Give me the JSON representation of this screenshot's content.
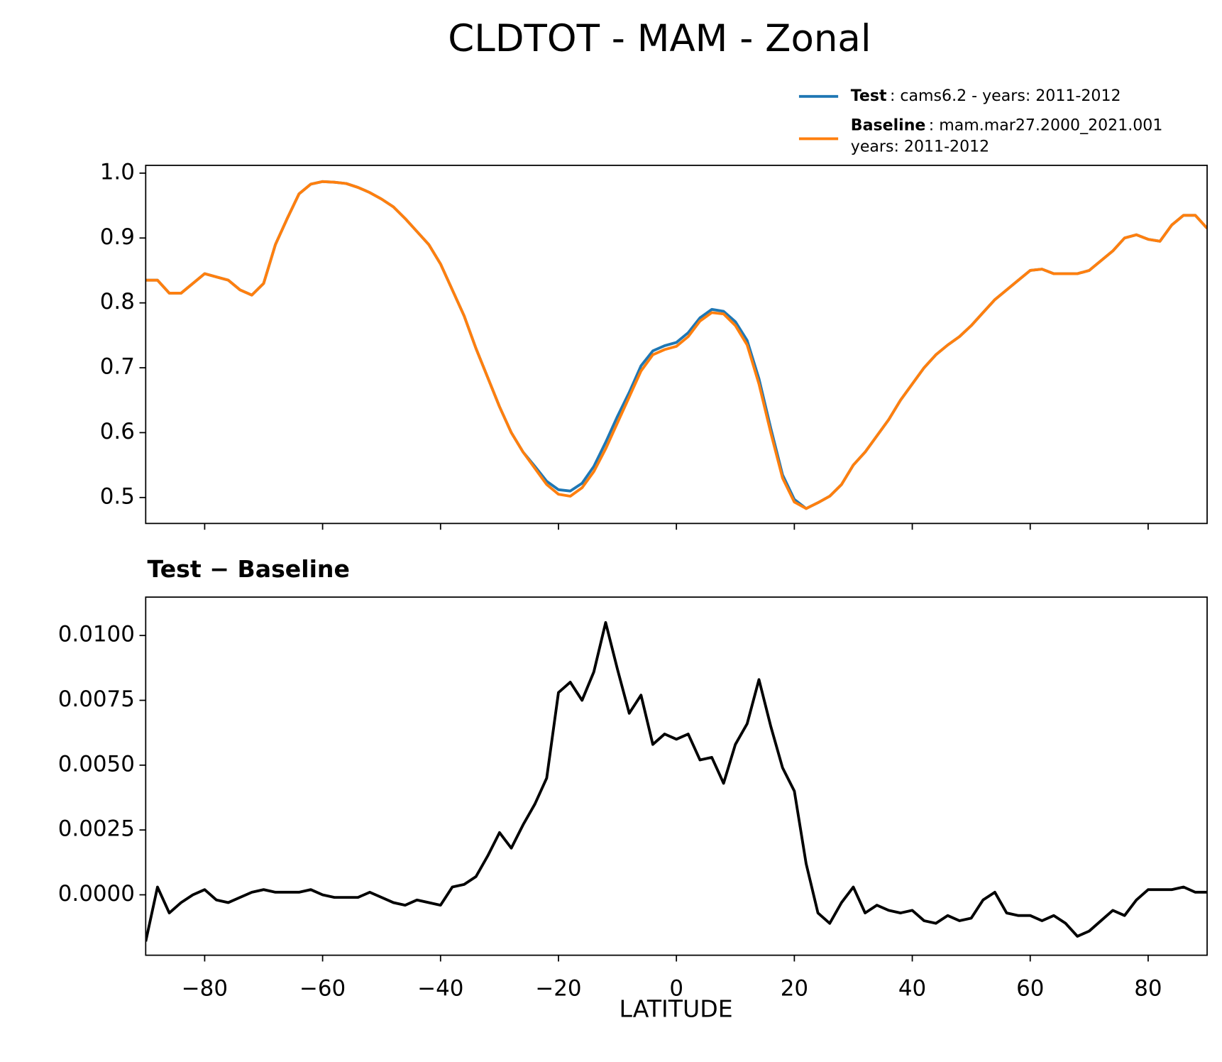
{
  "chart_data": [
    {
      "type": "line",
      "title": "CLDTOT - MAM - Zonal",
      "x": [
        -90,
        -88,
        -86,
        -84,
        -82,
        -80,
        -78,
        -76,
        -74,
        -72,
        -70,
        -68,
        -66,
        -64,
        -62,
        -60,
        -58,
        -56,
        -54,
        -52,
        -50,
        -48,
        -46,
        -44,
        -42,
        -40,
        -38,
        -36,
        -34,
        -32,
        -30,
        -28,
        -26,
        -24,
        -22,
        -20,
        -18,
        -16,
        -14,
        -12,
        -10,
        -8,
        -6,
        -4,
        -2,
        0,
        2,
        4,
        6,
        8,
        10,
        12,
        14,
        16,
        18,
        20,
        22,
        24,
        26,
        28,
        30,
        32,
        34,
        36,
        38,
        40,
        42,
        44,
        46,
        48,
        50,
        52,
        54,
        56,
        58,
        60,
        62,
        64,
        66,
        68,
        70,
        72,
        74,
        76,
        78,
        80,
        82,
        84,
        86,
        88,
        90
      ],
      "series": [
        {
          "name": "Test",
          "legend_detail": [
            ": cams6.2 - years: 2011-2012"
          ],
          "color": "#1f77b4",
          "values": [
            0.835,
            0.835,
            0.815,
            0.815,
            0.83,
            0.845,
            0.84,
            0.835,
            0.82,
            0.812,
            0.83,
            0.89,
            0.93,
            0.968,
            0.983,
            0.987,
            0.986,
            0.984,
            0.978,
            0.97,
            0.96,
            0.948,
            0.93,
            0.91,
            0.89,
            0.86,
            0.82,
            0.78,
            0.73,
            0.685,
            0.64,
            0.6,
            0.57,
            0.548,
            0.525,
            0.512,
            0.51,
            0.522,
            0.548,
            0.585,
            0.625,
            0.662,
            0.703,
            0.726,
            0.734,
            0.739,
            0.754,
            0.777,
            0.79,
            0.787,
            0.771,
            0.742,
            0.683,
            0.607,
            0.535,
            0.497,
            0.483,
            0.492,
            0.502,
            0.52,
            0.55,
            0.57,
            0.595,
            0.62,
            0.65,
            0.675,
            0.7,
            0.72,
            0.735,
            0.748,
            0.765,
            0.785,
            0.805,
            0.82,
            0.835,
            0.85,
            0.852,
            0.845,
            0.845,
            0.845,
            0.85,
            0.865,
            0.88,
            0.9,
            0.905,
            0.898,
            0.895,
            0.92,
            0.935,
            0.935,
            0.915
          ]
        },
        {
          "name": "Baseline",
          "legend_detail": [
            ": mam.mar27.2000_2021.001",
            "years: 2011-2012"
          ],
          "color": "#ff7f0e",
          "values": [
            0.835,
            0.835,
            0.815,
            0.815,
            0.83,
            0.845,
            0.84,
            0.835,
            0.82,
            0.812,
            0.83,
            0.89,
            0.93,
            0.968,
            0.983,
            0.987,
            0.986,
            0.984,
            0.978,
            0.97,
            0.96,
            0.948,
            0.93,
            0.91,
            0.89,
            0.86,
            0.82,
            0.78,
            0.73,
            0.685,
            0.64,
            0.6,
            0.57,
            0.545,
            0.52,
            0.505,
            0.502,
            0.515,
            0.54,
            0.575,
            0.615,
            0.655,
            0.695,
            0.72,
            0.728,
            0.733,
            0.748,
            0.772,
            0.785,
            0.783,
            0.765,
            0.735,
            0.675,
            0.6,
            0.53,
            0.493,
            0.483,
            0.492,
            0.502,
            0.52,
            0.55,
            0.57,
            0.595,
            0.62,
            0.65,
            0.675,
            0.7,
            0.72,
            0.735,
            0.748,
            0.765,
            0.785,
            0.805,
            0.82,
            0.835,
            0.85,
            0.852,
            0.845,
            0.845,
            0.845,
            0.85,
            0.865,
            0.88,
            0.9,
            0.905,
            0.898,
            0.895,
            0.92,
            0.935,
            0.935,
            0.915
          ]
        }
      ],
      "xlim": [
        -90,
        90
      ],
      "xticks": [
        -80,
        -60,
        -40,
        -20,
        0,
        20,
        40,
        60,
        80
      ],
      "ylim": [
        0.46,
        1.012
      ],
      "yticks": [
        0.5,
        0.6,
        0.7,
        0.8,
        0.9,
        {
          "value": 1.0,
          "label": "1.0"
        }
      ]
    },
    {
      "type": "line",
      "title": "Test − Baseline",
      "xlabel": "LATITUDE",
      "x": [
        -90,
        -88,
        -86,
        -84,
        -82,
        -80,
        -78,
        -76,
        -74,
        -72,
        -70,
        -68,
        -66,
        -64,
        -62,
        -60,
        -58,
        -56,
        -54,
        -52,
        -50,
        -48,
        -46,
        -44,
        -42,
        -40,
        -38,
        -36,
        -34,
        -32,
        -30,
        -28,
        -26,
        -24,
        -22,
        -20,
        -18,
        -16,
        -14,
        -12,
        -10,
        -8,
        -6,
        -4,
        -2,
        0,
        2,
        4,
        6,
        8,
        10,
        12,
        14,
        16,
        18,
        20,
        22,
        24,
        26,
        28,
        30,
        32,
        34,
        36,
        38,
        40,
        42,
        44,
        46,
        48,
        50,
        52,
        54,
        56,
        58,
        60,
        62,
        64,
        66,
        68,
        70,
        72,
        74,
        76,
        78,
        80,
        82,
        84,
        86,
        88,
        90
      ],
      "series": [
        {
          "color": "#000000",
          "values": [
            -0.0018,
            0.0003,
            -0.0007,
            -0.0003,
            0.0,
            0.0002,
            -0.0002,
            -0.0003,
            -0.0001,
            0.0001,
            0.0002,
            0.0001,
            0.0001,
            0.0001,
            0.0002,
            0.0,
            -0.0001,
            -0.0001,
            -0.0001,
            0.0001,
            -0.0001,
            -0.0003,
            -0.0004,
            -0.0002,
            -0.0003,
            -0.0004,
            0.0003,
            0.0004,
            0.0007,
            0.0015,
            0.0024,
            0.0018,
            0.0027,
            0.0035,
            0.0045,
            0.0078,
            0.0082,
            0.0075,
            0.0086,
            0.0105,
            0.0087,
            0.007,
            0.0077,
            0.0058,
            0.0062,
            0.006,
            0.0062,
            0.0052,
            0.0053,
            0.0043,
            0.0058,
            0.0066,
            0.0083,
            0.0065,
            0.0049,
            0.004,
            0.0012,
            -0.0007,
            -0.0011,
            -0.0003,
            0.0003,
            -0.0007,
            -0.0004,
            -0.0006,
            -0.0007,
            -0.0006,
            -0.001,
            -0.0011,
            -0.0008,
            -0.001,
            -0.0009,
            -0.0002,
            0.0001,
            -0.0007,
            -0.0008,
            -0.0008,
            -0.001,
            -0.0008,
            -0.0011,
            -0.0016,
            -0.0014,
            -0.001,
            -0.0006,
            -0.0008,
            -0.0002,
            0.0002,
            0.0002,
            0.0002,
            0.0003,
            0.0001,
            0.0001
          ]
        }
      ],
      "xlim": [
        -90,
        90
      ],
      "xticks": [
        {
          "value": -80,
          "label": "−80"
        },
        {
          "value": -60,
          "label": "−60"
        },
        {
          "value": -40,
          "label": "−40"
        },
        {
          "value": -20,
          "label": "−20"
        },
        0,
        20,
        40,
        60,
        80
      ],
      "ylim": [
        -0.00233,
        0.01148
      ],
      "yticks": [
        {
          "value": 0,
          "label": "0.0000"
        },
        {
          "value": 0.0025,
          "label": "0.0025"
        },
        {
          "value": 0.005,
          "label": "0.0050"
        },
        {
          "value": 0.0075,
          "label": "0.0075"
        },
        {
          "value": 0.01,
          "label": "0.0100"
        }
      ]
    }
  ]
}
